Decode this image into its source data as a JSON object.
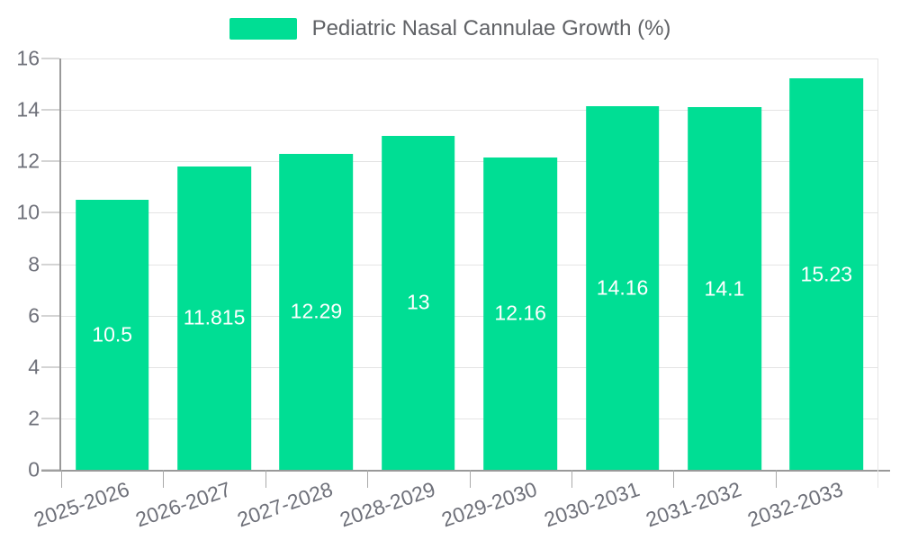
{
  "chart_data": {
    "type": "bar",
    "title": "Pediatric Nasal Cannulae Growth (%)",
    "legend": [
      "Pediatric Nasal Cannulae Growth (%)"
    ],
    "legend_position": "top-center",
    "categories": [
      "2025-2026",
      "2026-2027",
      "2027-2028",
      "2028-2029",
      "2029-2030",
      "2030-2031",
      "2031-2032",
      "2032-2033"
    ],
    "series": [
      {
        "name": "Pediatric Nasal Cannulae Growth (%)",
        "values": [
          10.5,
          11.815,
          12.29,
          13,
          12.16,
          14.16,
          14.1,
          15.23
        ],
        "value_labels": [
          "10.5",
          "11.815",
          "12.29",
          "13",
          "12.16",
          "14.16",
          "14.1",
          "15.23"
        ]
      }
    ],
    "xlabel": "",
    "ylabel": "",
    "ylim": [
      0,
      16
    ],
    "yticks": [
      0,
      2,
      4,
      6,
      8,
      10,
      12,
      14,
      16
    ],
    "grid": true,
    "x_label_rotation_deg": -19,
    "bar_band_fraction": 0.72,
    "colors": {
      "bar": "#00de94",
      "axis_line": "#999999",
      "grid_line": "#e4e4e4",
      "tick_line": "#aaaaaa",
      "axis_text": "#6e7079",
      "legend_text": "#606266",
      "value_text": "#ffffff",
      "background": "#ffffff"
    }
  }
}
